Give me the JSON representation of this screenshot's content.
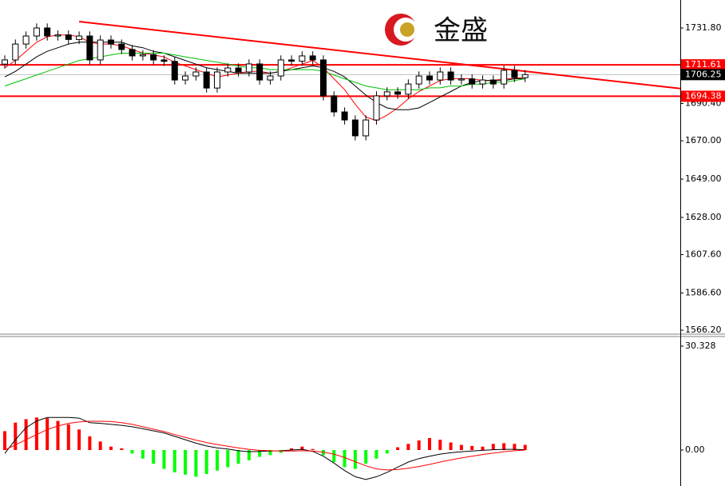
{
  "logo": "金盛",
  "chart_data": [
    {
      "type": "candlestick",
      "xlim": [
        -0.45,
        63.61
      ],
      "ylim": [
        1564.05,
        1747.13
      ],
      "yticks": [
        {
          "value": 1731.8,
          "label": "1731.80"
        },
        {
          "value": 1690.4,
          "label": "1690.40"
        },
        {
          "value": 1670,
          "label": "1670.00"
        },
        {
          "value": 1649,
          "label": "1649.00"
        },
        {
          "value": 1628,
          "label": "1628.00"
        },
        {
          "value": 1607.6,
          "label": "1607.60"
        },
        {
          "value": 1586.6,
          "label": "1586.60"
        },
        {
          "value": 1566.2,
          "label": "1566.20"
        }
      ],
      "up_color": "#ffffff",
      "down_color": "#000000",
      "wick_color": "#000000",
      "open": [
        1712.0,
        1714.3,
        1723.0,
        1727.4,
        1731.8,
        1727.4,
        1728.0,
        1725.5,
        1727.4,
        1714.3,
        1725.2,
        1723.0,
        1720.0,
        1716.5,
        1717.2,
        1714.3,
        1713.5,
        1703.3,
        1705.5,
        1707.7,
        1698.9,
        1707.7,
        1709.9,
        1707.7,
        1712.1,
        1703.3,
        1705.5,
        1714.3,
        1713.6,
        1716.5,
        1714.3,
        1694.6,
        1685.8,
        1681.4,
        1672.7,
        1681.4,
        1694.6,
        1696.8,
        1695.5,
        1701.1,
        1705.5,
        1703.3,
        1707.7,
        1703.3,
        1703.9,
        1701.1,
        1703.3,
        1701.1,
        1708.6,
        1704.6
      ],
      "high": [
        1716.8,
        1725.5,
        1729.9,
        1734.3,
        1734.3,
        1730.5,
        1730.5,
        1729.9,
        1729.9,
        1727.7,
        1727.7,
        1725.5,
        1722.5,
        1719.7,
        1719.7,
        1716.8,
        1716.0,
        1708.0,
        1710.2,
        1710.2,
        1710.2,
        1712.4,
        1712.4,
        1714.6,
        1714.6,
        1708.0,
        1716.8,
        1716.8,
        1719.0,
        1719.0,
        1716.8,
        1697.1,
        1688.3,
        1683.9,
        1683.9,
        1697.1,
        1699.3,
        1699.3,
        1703.6,
        1708.0,
        1708.0,
        1710.2,
        1710.2,
        1706.4,
        1706.4,
        1705.8,
        1705.8,
        1711.1,
        1711.1,
        1708.75
      ],
      "low": [
        1709.5,
        1711.8,
        1720.5,
        1724.9,
        1724.9,
        1724.9,
        1723.0,
        1723.0,
        1711.8,
        1711.8,
        1720.5,
        1717.5,
        1714.0,
        1714.0,
        1711.8,
        1711.0,
        1700.8,
        1700.8,
        1703.0,
        1696.4,
        1696.4,
        1705.2,
        1705.2,
        1705.2,
        1700.8,
        1700.8,
        1703.0,
        1711.1,
        1711.1,
        1711.8,
        1692.1,
        1683.3,
        1678.9,
        1670.2,
        1670.2,
        1678.9,
        1692.1,
        1693.0,
        1693.0,
        1698.6,
        1700.8,
        1700.8,
        1700.8,
        1700.8,
        1698.6,
        1698.6,
        1698.6,
        1698.6,
        1702.1,
        1702.1
      ],
      "close": [
        1714.3,
        1723.0,
        1727.4,
        1731.8,
        1727.4,
        1728.0,
        1725.5,
        1727.4,
        1714.3,
        1725.2,
        1723.0,
        1720.0,
        1716.5,
        1717.2,
        1714.3,
        1713.5,
        1703.3,
        1705.5,
        1707.7,
        1698.9,
        1707.7,
        1709.9,
        1707.7,
        1712.1,
        1703.3,
        1705.5,
        1714.3,
        1713.6,
        1716.5,
        1714.3,
        1694.6,
        1685.8,
        1681.4,
        1672.7,
        1681.4,
        1694.6,
        1696.8,
        1695.5,
        1701.1,
        1705.5,
        1703.3,
        1707.7,
        1703.3,
        1703.9,
        1701.1,
        1703.3,
        1701.1,
        1708.6,
        1704.6,
        1706.25
      ],
      "series": [
        {
          "color": "#ff0000",
          "values": [
            1710,
            1714,
            1719,
            1724,
            1727,
            1728,
            1728,
            1727,
            1724,
            1723,
            1723,
            1722,
            1720,
            1718,
            1717,
            1716,
            1713,
            1711,
            1709,
            1707,
            1705,
            1706,
            1707,
            1708,
            1708,
            1707,
            1708,
            1710,
            1712,
            1714,
            1710,
            1704,
            1698,
            1690,
            1683,
            1681,
            1684,
            1688,
            1693,
            1697,
            1700,
            1703,
            1704,
            1704,
            1704,
            1703,
            1703,
            1704,
            1704,
            1705
          ]
        },
        {
          "color": "#000000",
          "values": [
            1705,
            1708,
            1712,
            1716,
            1719,
            1721,
            1723,
            1724,
            1724,
            1724,
            1724,
            1724,
            1722,
            1721,
            1719,
            1718,
            1716,
            1714,
            1712,
            1710,
            1709,
            1708,
            1707,
            1707,
            1707,
            1707,
            1708,
            1709,
            1710,
            1711,
            1710,
            1708,
            1705,
            1700,
            1695,
            1691,
            1688,
            1687,
            1687,
            1688,
            1691,
            1694,
            1697,
            1700,
            1702,
            1703,
            1703,
            1703,
            1704,
            1704
          ]
        },
        {
          "color": "#00c000",
          "values": [
            1700,
            1702,
            1704,
            1706,
            1708,
            1710,
            1712,
            1714,
            1715,
            1716,
            1717,
            1718,
            1718,
            1718,
            1718,
            1718,
            1717,
            1716,
            1715,
            1714,
            1713,
            1712,
            1711,
            1710,
            1710,
            1709,
            1709,
            1709,
            1709,
            1709,
            1708,
            1706,
            1704,
            1702,
            1700,
            1699,
            1698,
            1698,
            1698,
            1698,
            1699,
            1699,
            1700,
            1700,
            1701,
            1701,
            1702,
            1702,
            1703,
            1704
          ]
        }
      ],
      "hlines": [
        {
          "value": 1711.61,
          "color": "#ff0000",
          "box": "#ff0000"
        },
        {
          "value": 1706.25,
          "color": "#c0c0c0",
          "box": "#000000"
        },
        {
          "value": 1694.38,
          "color": "#ff0000",
          "box": "#ff0000"
        }
      ],
      "trendline": {
        "x": [
          7,
          63.61
        ],
        "y": [
          1735.3,
          1698.6
        ],
        "color": "#ff0000"
      }
    },
    {
      "type": "macd",
      "xlim": [
        -0.45,
        63.61
      ],
      "ylim": [
        -10.5,
        33.13
      ],
      "yticks": [
        30.328,
        {
          "value": 0,
          "label": "0.00"
        }
      ],
      "up_color": "#ff0000",
      "down_color": "#00ff00",
      "values": [
        5.5,
        8.0,
        9.0,
        9.5,
        9.3,
        8.5,
        7.5,
        6.0,
        4.0,
        2.5,
        1.0,
        0.5,
        -1.0,
        -2.5,
        -4.0,
        -5.5,
        -6.5,
        -7.2,
        -7.8,
        -7.0,
        -6.0,
        -5.0,
        -4.0,
        -3.0,
        -2.0,
        -1.5,
        -0.8,
        0.5,
        1.0,
        0.3,
        -1.5,
        -3.5,
        -5.0,
        -5.5,
        -4.0,
        -2.5,
        -1.0,
        0.8,
        1.8,
        2.8,
        3.5,
        3.0,
        2.2,
        1.5,
        1.2,
        1.0,
        1.8,
        2.0,
        1.8,
        1.5
      ],
      "series": [
        {
          "color": "#000000",
          "values": [
            -1.0,
            3.0,
            6.5,
            8.5,
            9.5,
            9.5,
            9.5,
            9.3,
            8.0,
            7.8,
            7.5,
            7.2,
            6.8,
            6.2,
            5.6,
            5.0,
            4.0,
            3.0,
            2.0,
            1.2,
            0.6,
            0.3,
            -0.2,
            -0.5,
            -0.4,
            -0.3,
            -0.2,
            0.0,
            0.2,
            -0.4,
            -1.8,
            -3.8,
            -6.0,
            -7.8,
            -8.6,
            -7.8,
            -6.5,
            -5.0,
            -3.5,
            -2.5,
            -1.8,
            -1.2,
            -0.8,
            -0.5,
            -0.3,
            -0.1,
            0.1,
            0.2,
            0.2,
            0.1
          ]
        },
        {
          "color": "#ff0000",
          "values": [
            0.0,
            1.5,
            3.0,
            4.5,
            6.0,
            7.0,
            7.8,
            8.2,
            8.4,
            8.4,
            8.3,
            8.0,
            7.5,
            6.8,
            6.1,
            5.4,
            4.5,
            3.7,
            2.9,
            2.2,
            1.6,
            1.1,
            0.6,
            0.2,
            -0.1,
            -0.2,
            -0.3,
            -0.3,
            -0.2,
            -0.3,
            -0.6,
            -1.2,
            -2.2,
            -3.4,
            -4.6,
            -5.5,
            -5.8,
            -5.7,
            -5.3,
            -4.8,
            -4.2,
            -3.5,
            -2.9,
            -2.3,
            -1.8,
            -1.3,
            -0.9,
            -0.5,
            -0.2,
            0.0
          ]
        }
      ]
    }
  ]
}
